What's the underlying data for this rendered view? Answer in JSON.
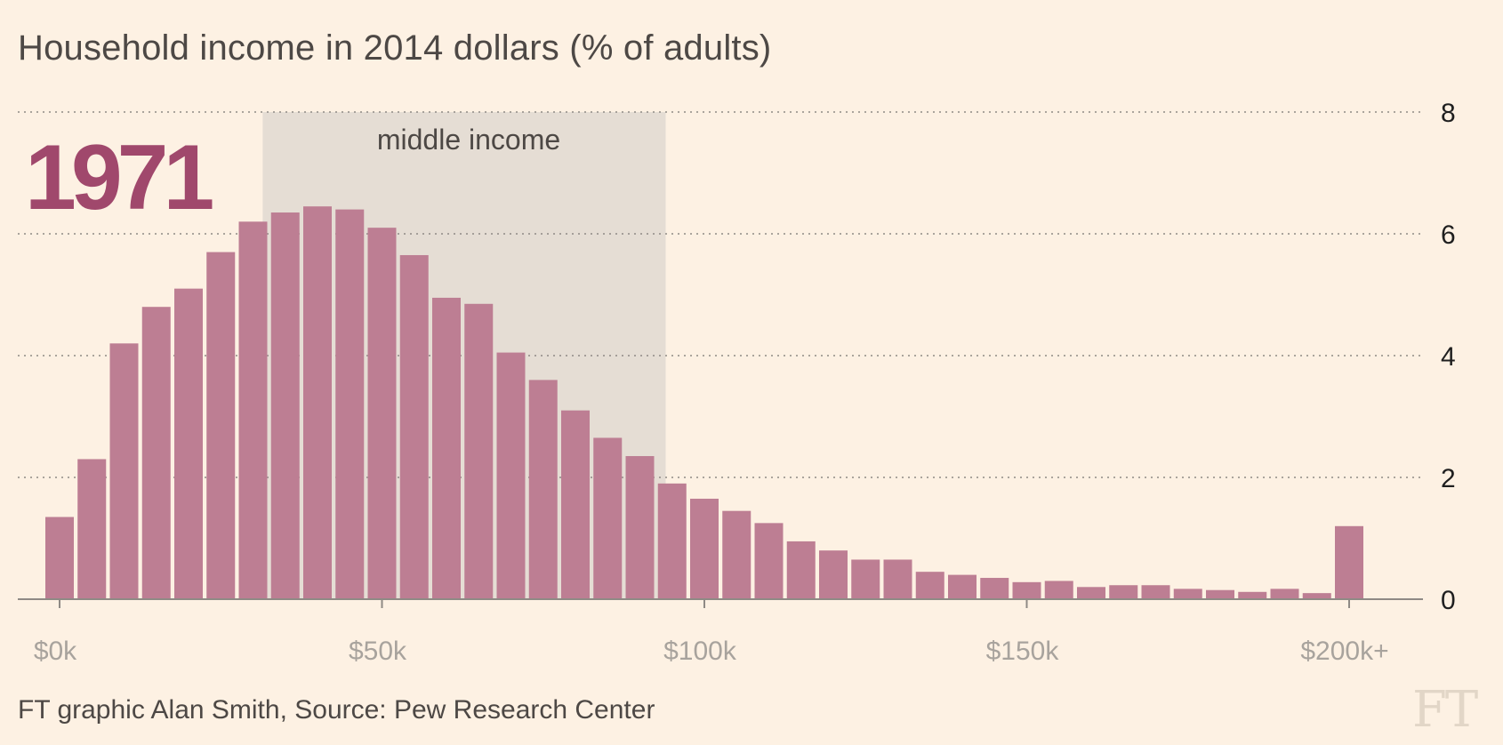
{
  "title": "Household income in 2014 dollars (% of adults)",
  "source": "FT graphic Alan Smith, Source: Pew Research Center",
  "logo_text": "FT",
  "colors": {
    "background": "#fdf1e3",
    "bar": "#bd7e93",
    "band": "#e5ddd4",
    "year": "#a0486c",
    "grid": "#8f8a85"
  },
  "chart_data": {
    "type": "bar",
    "title": "Household income in 2014 dollars (% of adults)",
    "annotation_year": "1971",
    "band": {
      "label": "middle income",
      "x_range": [
        31.5,
        94
      ]
    },
    "xlabel": "",
    "ylabel": "",
    "bin_width": 5,
    "x": [
      0,
      5,
      10,
      15,
      20,
      25,
      30,
      35,
      40,
      45,
      50,
      55,
      60,
      65,
      70,
      75,
      80,
      85,
      90,
      95,
      100,
      105,
      110,
      115,
      120,
      125,
      130,
      135,
      140,
      145,
      150,
      155,
      160,
      165,
      170,
      175,
      180,
      185,
      190,
      195,
      200
    ],
    "values": [
      1.35,
      2.3,
      4.2,
      4.8,
      5.1,
      5.7,
      6.2,
      6.35,
      6.45,
      6.4,
      6.1,
      5.65,
      4.95,
      4.85,
      4.05,
      3.6,
      3.1,
      2.65,
      2.35,
      1.9,
      1.65,
      1.45,
      1.25,
      0.95,
      0.8,
      0.65,
      0.65,
      0.45,
      0.4,
      0.35,
      0.28,
      0.3,
      0.2,
      0.23,
      0.23,
      0.17,
      0.15,
      0.12,
      0.17,
      0.1,
      1.2
    ],
    "x_ticks": [
      {
        "value": 0,
        "label": "$0k"
      },
      {
        "value": 50,
        "label": "$50k"
      },
      {
        "value": 100,
        "label": "$100k"
      },
      {
        "value": 150,
        "label": "$150k"
      },
      {
        "value": 200,
        "label": "$200k+"
      }
    ],
    "y_ticks": [
      0,
      2,
      4,
      6,
      8
    ],
    "ylim": [
      0,
      8
    ],
    "grid": true,
    "legend": "none"
  }
}
